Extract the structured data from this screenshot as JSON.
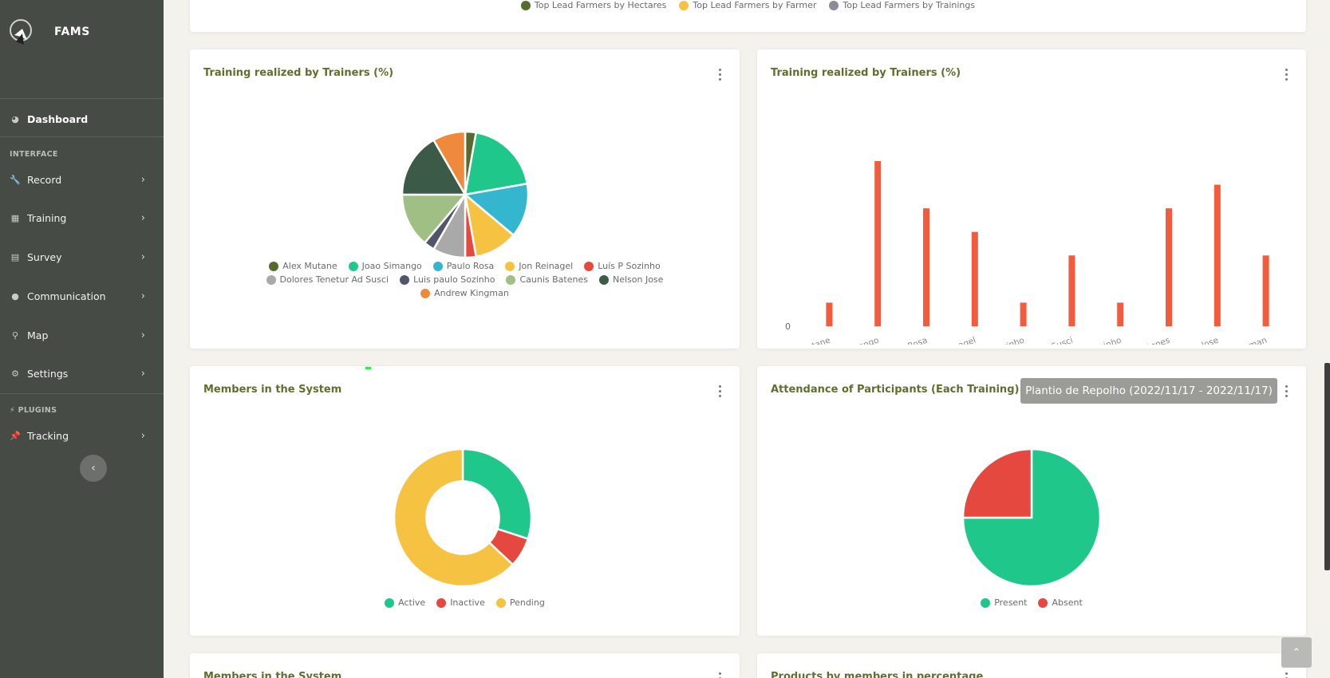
{
  "app": {
    "name": "FAMS"
  },
  "sidebar": {
    "dashboard": {
      "label": "Dashboard",
      "icon": "dashboard-icon"
    },
    "interface_heading": "INTERFACE",
    "items": [
      {
        "label": "Record",
        "icon": "wrench-icon"
      },
      {
        "label": "Training",
        "icon": "chart-icon"
      },
      {
        "label": "Survey",
        "icon": "table-icon"
      },
      {
        "label": "Communication",
        "icon": "comment-icon"
      },
      {
        "label": "Map",
        "icon": "map-pin-icon"
      },
      {
        "label": "Settings",
        "icon": "gear-icon"
      }
    ],
    "plugins_heading": "PLUGINS",
    "plugins": [
      {
        "label": "Tracking",
        "icon": "pin-icon"
      }
    ]
  },
  "top_legend": [
    {
      "label": "Top Lead Farmers by Hectares",
      "color": "#556b2f"
    },
    {
      "label": "Top Lead Farmers by Farmer",
      "color": "#f5c242"
    },
    {
      "label": "Top Lead Farmers by Trainings",
      "color": "#8a8d99"
    }
  ],
  "cards": {
    "training_pie": {
      "title": "Training realized by Trainers (%)"
    },
    "training_bar": {
      "title": "Training realized by Trainers (%)"
    },
    "members": {
      "title": "Members in the System"
    },
    "attendance": {
      "title": "Attendance of Participants (Each Training)",
      "selected_training": "Plantio de Repolho (2022/11/17 - 2022/11/17)"
    },
    "members_bottom": {
      "title": "Members in the System"
    },
    "products": {
      "title": "Products by members in percentage"
    }
  },
  "chart_data": [
    {
      "type": "pie",
      "title": "Training realized by Trainers (%)",
      "categories": [
        "Alex Mutane",
        "Joao Simango",
        "Paulo Rosa",
        "Jon Reinagel",
        "Luís P Sozinho",
        "Dolores Tenetur Ad Susci",
        "Luis paulo Sozinho",
        "Caunis Batenes",
        "Nelson Jose",
        "Andrew Kingman"
      ],
      "values": [
        1,
        7,
        5,
        4,
        1,
        3,
        1,
        5,
        6,
        3
      ],
      "colors": [
        "#556b2f",
        "#1fc88a",
        "#35b6cf",
        "#f5c242",
        "#e5483e",
        "#a9a9a9",
        "#51556a",
        "#9fbf85",
        "#3c5a48",
        "#ef8a3d"
      ]
    },
    {
      "type": "bar",
      "title": "Training realized by Trainers (%)",
      "categories": [
        "Alex Mutane",
        "Joao Simango",
        "Paulo Rosa",
        "Jon Reinagel",
        "Luís P Sozinho",
        "Dolores Tenetur Ad Susci",
        "Luis paulo Sozinho",
        "Caunis Batenes",
        "Nelson Jose",
        "Andrew Kingman"
      ],
      "values": [
        1,
        7,
        5,
        4,
        1,
        3,
        1,
        5,
        6,
        3
      ],
      "ytick_label": "0",
      "color": "#f45a3c"
    },
    {
      "type": "pie",
      "title": "Members in the System",
      "categories": [
        "Active",
        "Inactive",
        "Pending"
      ],
      "values": [
        30,
        7,
        63
      ],
      "colors": [
        "#1fc88a",
        "#e5483e",
        "#f5c242"
      ],
      "donut": true
    },
    {
      "type": "pie",
      "title": "Attendance of Participants (Each Training)",
      "categories": [
        "Present",
        "Absent"
      ],
      "values": [
        75,
        25
      ],
      "colors": [
        "#1fc88a",
        "#e5483e"
      ]
    }
  ]
}
